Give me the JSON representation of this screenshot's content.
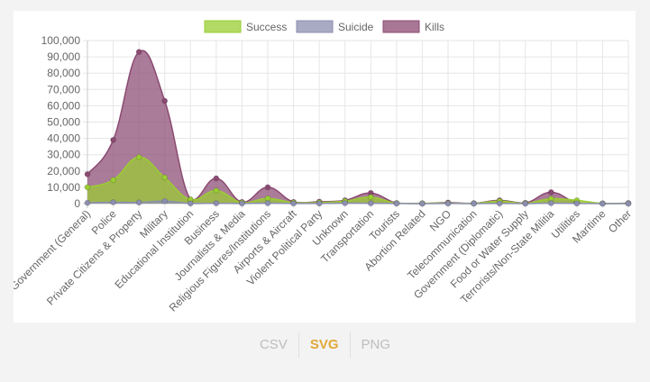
{
  "chart_data": {
    "type": "area",
    "categories": [
      "Government (General)",
      "Police",
      "Private Citizens & Property",
      "Military",
      "Educational Institution",
      "Business",
      "Journalists & Media",
      "Religious Figures/Institutions",
      "Airports & Aircraft",
      "Violent Political Party",
      "Unknown",
      "Transportation",
      "Tourists",
      "Abortion Related",
      "NGO",
      "Telecommunication",
      "Government (Diplomatic)",
      "Food or Water Supply",
      "Terrorists/Non-State Militia",
      "Utilities",
      "Maritime",
      "Other"
    ],
    "series": [
      {
        "name": "Success",
        "color": "#9acd32",
        "values": [
          10000,
          14500,
          28500,
          16000,
          2500,
          8000,
          600,
          3200,
          600,
          700,
          1500,
          4000,
          200,
          200,
          300,
          100,
          1500,
          200,
          3000,
          2000,
          100,
          100
        ]
      },
      {
        "name": "Suicide",
        "color": "#8c8fb0",
        "values": [
          500,
          800,
          700,
          1500,
          100,
          200,
          50,
          300,
          100,
          100,
          300,
          200,
          50,
          10,
          50,
          20,
          100,
          20,
          300,
          100,
          10,
          20
        ]
      },
      {
        "name": "Kills",
        "color": "#8b4a72",
        "values": [
          18000,
          39000,
          93000,
          63000,
          2500,
          15500,
          1000,
          10000,
          1000,
          1200,
          2000,
          6500,
          300,
          100,
          600,
          200,
          2000,
          400,
          7000,
          500,
          100,
          300
        ]
      }
    ],
    "ylim": [
      0,
      100000
    ],
    "yticks": [
      "0",
      "10,000",
      "20,000",
      "30,000",
      "40,000",
      "50,000",
      "60,000",
      "70,000",
      "80,000",
      "90,000",
      "100,000"
    ],
    "grid": true,
    "legend": "top"
  },
  "downloads": {
    "csv": "CSV",
    "svg": "SVG",
    "png": "PNG"
  },
  "colors": {
    "active_download": "#e0a93a",
    "inactive_download": "#bdbdbd"
  }
}
